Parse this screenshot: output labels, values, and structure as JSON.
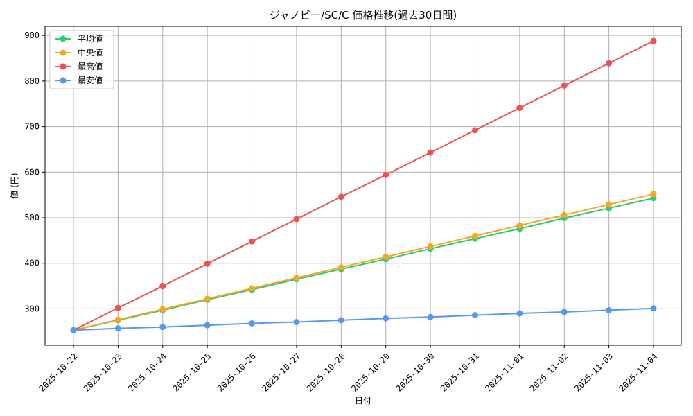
{
  "chart_data": {
    "type": "line",
    "title": "ジャノビー/SC/C 価格推移(過去30日間)",
    "xlabel": "日付",
    "ylabel": "値 (円)",
    "categories": [
      "2025-10-22",
      "2025-10-23",
      "2025-10-24",
      "2025-10-25",
      "2025-10-26",
      "2025-10-27",
      "2025-10-28",
      "2025-10-29",
      "2025-10-30",
      "2025-10-31",
      "2025-11-01",
      "2025-11-02",
      "2025-11-03",
      "2025-11-04"
    ],
    "ylim": [
      220,
      920
    ],
    "yticks": [
      300,
      400,
      500,
      600,
      700,
      800,
      900
    ],
    "grid": true,
    "legend_position": "top-left",
    "series": [
      {
        "name": "平均値",
        "color": "#2ecc71",
        "values": [
          253,
          275,
          297,
          320,
          342,
          365,
          387,
          409,
          432,
          454,
          476,
          499,
          521,
          543
        ]
      },
      {
        "name": "中央値",
        "color": "#f5a623",
        "values": [
          253,
          276,
          299,
          322,
          345,
          368,
          391,
          414,
          437,
          460,
          483,
          506,
          529,
          552
        ]
      },
      {
        "name": "最高値",
        "color": "#f05050",
        "values": [
          253,
          302,
          350,
          399,
          448,
          497,
          546,
          594,
          643,
          692,
          741,
          790,
          839,
          888
        ]
      },
      {
        "name": "最安値",
        "color": "#5599ee",
        "values": [
          253,
          257,
          260,
          264,
          268,
          271,
          275,
          279,
          282,
          286,
          290,
          293,
          297,
          301
        ]
      }
    ]
  }
}
